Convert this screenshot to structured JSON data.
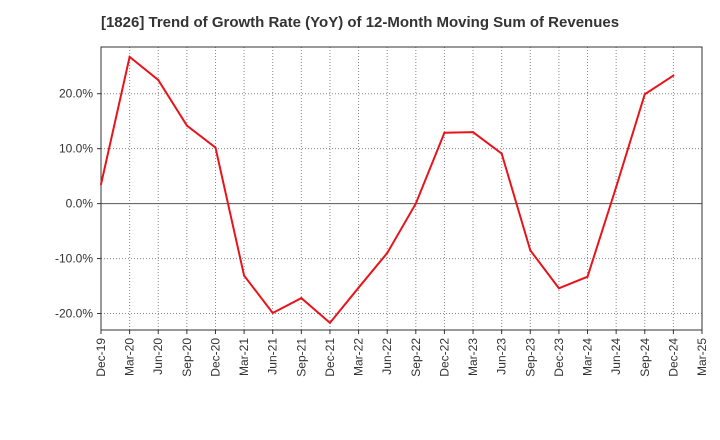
{
  "chart_data": {
    "type": "line",
    "title": "[1826]  Trend of Growth Rate (YoY) of 12-Month Moving Sum of Revenues",
    "xlabel": "",
    "ylabel": "",
    "x_tick_labels": [
      "Dec-19",
      "Mar-20",
      "Jun-20",
      "Sep-20",
      "Dec-20",
      "Mar-21",
      "Jun-21",
      "Sep-21",
      "Dec-21",
      "Mar-22",
      "Jun-22",
      "Sep-22",
      "Dec-22",
      "Mar-23",
      "Jun-23",
      "Sep-23",
      "Dec-23",
      "Mar-24",
      "Jun-24",
      "Sep-24",
      "Dec-24",
      "Mar-25"
    ],
    "y_ticks": [
      -20,
      -10,
      0,
      10,
      20
    ],
    "y_tick_labels": [
      "-20.0%",
      "-10.0%",
      "0.0%",
      "10.0%",
      "20.0%"
    ],
    "ylim": [
      -23,
      28.5
    ],
    "grid": true,
    "series": [
      {
        "color": "#e8141c",
        "x": [
          "Dec-19",
          "Mar-20",
          "Jun-20",
          "Sep-20",
          "Dec-20",
          "Mar-21",
          "Jun-21",
          "Sep-21",
          "Dec-21",
          "Mar-22",
          "Jun-22",
          "Sep-22",
          "Dec-22",
          "Mar-23",
          "Jun-23",
          "Sep-23",
          "Dec-23",
          "Mar-24",
          "Jun-24",
          "Sep-24",
          "Dec-24"
        ],
        "values": [
          3.5,
          26.7,
          22.5,
          14.2,
          10.2,
          -13.1,
          -19.9,
          -17.2,
          -21.7,
          -15.3,
          -9.0,
          0.0,
          12.9,
          13.0,
          9.1,
          -8.5,
          -15.4,
          -13.3,
          3.0,
          19.9,
          23.3
        ]
      }
    ]
  }
}
